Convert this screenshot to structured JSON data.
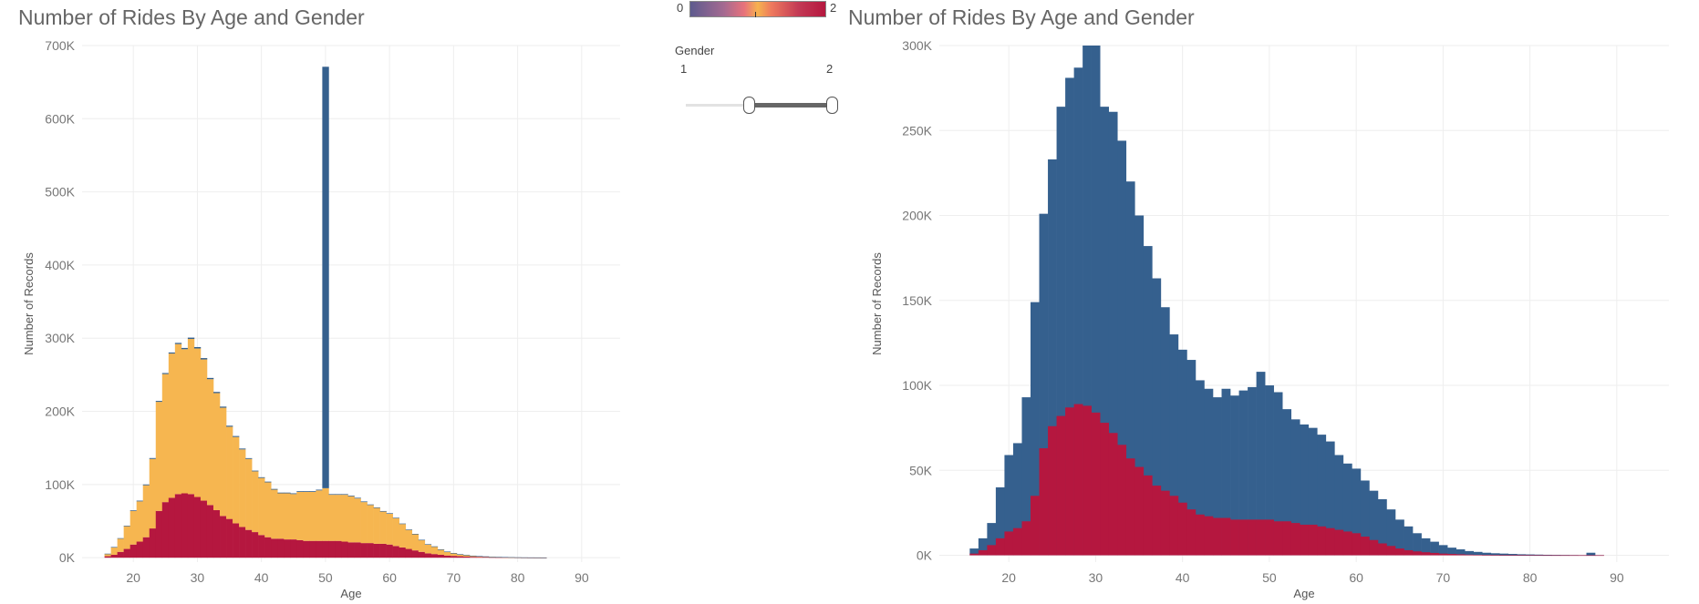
{
  "chart_data": [
    {
      "type": "bar",
      "title": "Number of Rides By Age and Gender",
      "xlabel": "Age",
      "ylabel": "Number of Records",
      "stacked": true,
      "xlim": [
        12,
        96
      ],
      "ylim": [
        -6000,
        700000
      ],
      "xticks": [
        "20",
        "30",
        "40",
        "50",
        "60",
        "70",
        "80",
        "90"
      ],
      "yticks": [
        "0K",
        "100K",
        "200K",
        "300K",
        "400K",
        "500K",
        "600K",
        "700K"
      ],
      "grid": true,
      "legend": "none",
      "x": [
        16,
        17,
        18,
        19,
        20,
        21,
        22,
        23,
        24,
        25,
        26,
        27,
        28,
        29,
        30,
        31,
        32,
        33,
        34,
        35,
        36,
        37,
        38,
        39,
        40,
        41,
        42,
        43,
        44,
        45,
        46,
        47,
        48,
        49,
        50,
        51,
        52,
        53,
        54,
        55,
        56,
        57,
        58,
        59,
        60,
        61,
        62,
        63,
        64,
        65,
        66,
        67,
        68,
        69,
        70,
        71,
        72,
        73,
        74,
        75,
        76,
        77,
        78,
        79,
        80,
        81,
        82,
        83,
        84
      ],
      "series": [
        {
          "color": "#b5173f",
          "values": [
            2000,
            4000,
            8000,
            12000,
            18000,
            22000,
            28000,
            40000,
            64000,
            76000,
            82000,
            87000,
            88000,
            87000,
            83000,
            78000,
            72000,
            65000,
            57000,
            53000,
            47000,
            42000,
            38000,
            35000,
            31000,
            28000,
            26000,
            26000,
            25000,
            25000,
            24000,
            23000,
            23000,
            23000,
            23000,
            23000,
            23000,
            22000,
            21000,
            21000,
            20000,
            20000,
            19000,
            19000,
            18000,
            16000,
            14000,
            12000,
            10000,
            8000,
            6000,
            5000,
            4000,
            3000,
            2500,
            2000,
            1500,
            1200,
            1000,
            800,
            600,
            500,
            400,
            300,
            200,
            150,
            100,
            80,
            60
          ]
        },
        {
          "color": "#f6b650",
          "values": [
            3000,
            10000,
            18000,
            31000,
            46000,
            55000,
            71000,
            95000,
            149000,
            175000,
            197000,
            205000,
            197000,
            212000,
            203000,
            193000,
            172000,
            160000,
            148000,
            126000,
            118000,
            106000,
            97000,
            83000,
            78000,
            75000,
            67000,
            62000,
            63000,
            62000,
            66000,
            67000,
            67000,
            69000,
            72000,
            63000,
            63000,
            64000,
            63000,
            60000,
            56000,
            52000,
            49000,
            44000,
            42000,
            38000,
            32000,
            26000,
            22000,
            16000,
            12000,
            10000,
            7000,
            5000,
            3500,
            2500,
            2000,
            1300,
            900,
            700,
            500,
            400,
            300,
            200,
            150,
            100,
            80,
            60,
            40
          ]
        },
        {
          "color": "#35608e",
          "values": [
            500,
            600,
            700,
            800,
            900,
            1000,
            1100,
            1200,
            1300,
            1400,
            1500,
            1600,
            1700,
            1800,
            1900,
            1800,
            1700,
            1600,
            1500,
            1400,
            1300,
            1200,
            1100,
            1000,
            1000,
            1000,
            1000,
            1000,
            1000,
            1000,
            1000,
            1000,
            1000,
            1000,
            576000,
            900,
            900,
            900,
            900,
            900,
            900,
            800,
            800,
            800,
            800,
            700,
            700,
            600,
            600,
            500,
            500,
            500,
            400,
            400,
            400,
            300,
            300,
            300,
            300,
            300,
            200,
            200,
            200,
            200,
            200,
            200,
            200,
            200,
            200
          ]
        }
      ]
    },
    {
      "type": "bar",
      "title": "Number of Rides By Age and Gender",
      "xlabel": "Age",
      "ylabel": "Number of Records",
      "stacked": false,
      "xlim": [
        12,
        96
      ],
      "ylim": [
        -4000,
        300000
      ],
      "xticks": [
        "20",
        "30",
        "40",
        "50",
        "60",
        "70",
        "80",
        "90"
      ],
      "yticks": [
        "0K",
        "50K",
        "100K",
        "150K",
        "200K",
        "250K",
        "300K"
      ],
      "grid": true,
      "legend": "none",
      "x": [
        16,
        17,
        18,
        19,
        20,
        21,
        22,
        23,
        24,
        25,
        26,
        27,
        28,
        29,
        30,
        31,
        32,
        33,
        34,
        35,
        36,
        37,
        38,
        39,
        40,
        41,
        42,
        43,
        44,
        45,
        46,
        47,
        48,
        49,
        50,
        51,
        52,
        53,
        54,
        55,
        56,
        57,
        58,
        59,
        60,
        61,
        62,
        63,
        64,
        65,
        66,
        67,
        68,
        69,
        70,
        71,
        72,
        73,
        74,
        75,
        76,
        77,
        78,
        79,
        80,
        81,
        82,
        83,
        84,
        85,
        86,
        87,
        88
      ],
      "series": [
        {
          "color": "#35608e",
          "values": [
            4000,
            10000,
            19000,
            40000,
            59000,
            66000,
            93000,
            149000,
            201000,
            233000,
            264000,
            281000,
            287000,
            300000,
            300000,
            264000,
            261000,
            244000,
            220000,
            200000,
            182000,
            163000,
            146000,
            130000,
            121000,
            115000,
            103000,
            98000,
            93000,
            98000,
            94000,
            97000,
            99000,
            108000,
            100000,
            96000,
            86000,
            80000,
            77000,
            75000,
            71000,
            67000,
            59000,
            54000,
            51000,
            44000,
            38000,
            33000,
            27000,
            21000,
            17000,
            13000,
            10000,
            8000,
            6000,
            4500,
            3500,
            2500,
            2000,
            1500,
            1200,
            1000,
            800,
            600,
            500,
            400,
            300,
            250,
            200,
            150,
            100,
            1500,
            100
          ]
        },
        {
          "color": "#b5173f",
          "values": [
            1000,
            3000,
            6000,
            10000,
            14000,
            16000,
            20000,
            35000,
            63000,
            76000,
            82000,
            87000,
            89000,
            88000,
            84000,
            78000,
            72000,
            65000,
            57000,
            52000,
            47000,
            41000,
            38000,
            35000,
            31000,
            27000,
            24000,
            23000,
            22000,
            22000,
            21000,
            21000,
            21000,
            21000,
            21000,
            20000,
            20000,
            19000,
            18000,
            18000,
            17000,
            16000,
            15000,
            14000,
            13000,
            11000,
            9000,
            7000,
            5500,
            4000,
            3000,
            2300,
            1800,
            1400,
            1000,
            800,
            600,
            400,
            300,
            200,
            150,
            100,
            80,
            60,
            40,
            30,
            20,
            10,
            10,
            10,
            10,
            10,
            10
          ]
        }
      ]
    }
  ],
  "legend_panel": {
    "color_min": "0",
    "color_max": "2",
    "filter_title": "Gender",
    "slider_min": "1",
    "slider_max": "2"
  }
}
